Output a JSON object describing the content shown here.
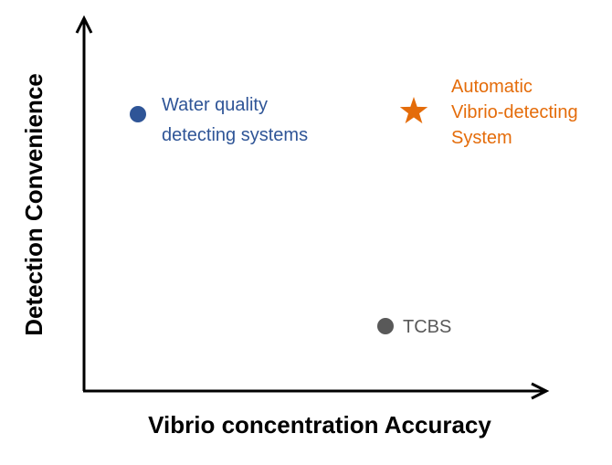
{
  "diagram": {
    "x_axis_label": "Vibrio concentration Accuracy",
    "y_axis_label": "Detection Convenience",
    "colors": {
      "axis": "#000000",
      "water_quality": "#2F5597",
      "automatic": "#E46C0A",
      "tcbs": "#595959"
    },
    "items": [
      {
        "id": "water-quality",
        "marker": "circle",
        "label_lines": [
          "Water quality",
          "detecting systems"
        ]
      },
      {
        "id": "automatic",
        "marker": "star",
        "label_lines": [
          "Automatic",
          "Vibrio-detecting",
          "System"
        ]
      },
      {
        "id": "tcbs",
        "marker": "circle",
        "label_lines": [
          "TCBS"
        ]
      }
    ]
  }
}
